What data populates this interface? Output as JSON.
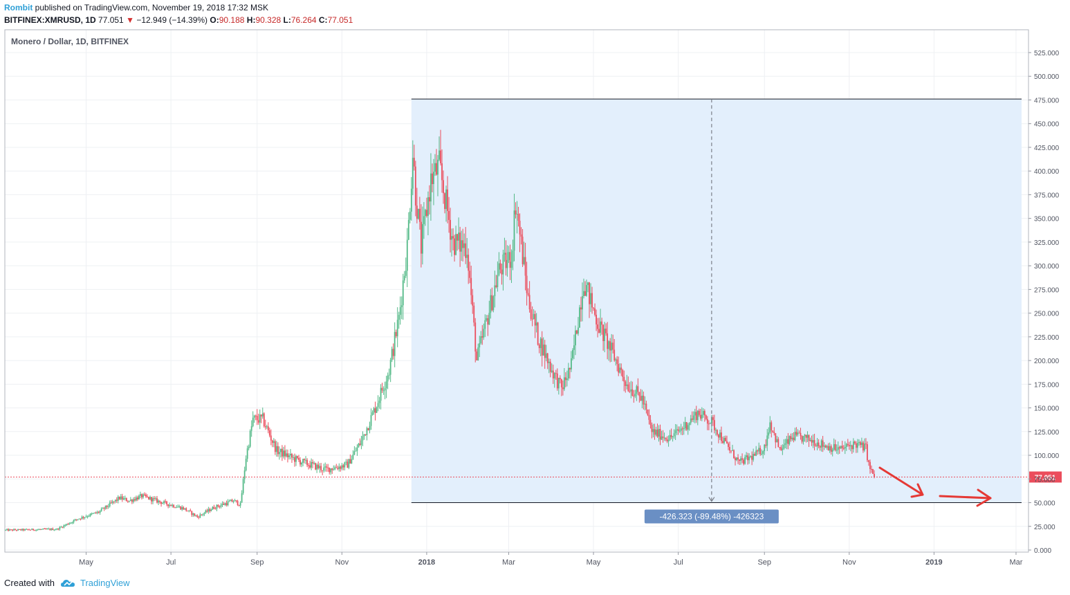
{
  "header": {
    "author": "Rombit",
    "published": "published on TradingView.com, November 19, 2018 17:32 MSK",
    "symbol": "BITFINEX:XMRUSD, 1D",
    "last": "77.051",
    "change": "−12.949 (−14.39%)",
    "o_label": "O:",
    "o": "90.188",
    "h_label": "H:",
    "h": "90.328",
    "l_label": "L:",
    "l": "76.264",
    "c_label": "C:",
    "c": "77.051"
  },
  "footer": {
    "created": "Created with",
    "brand": "TradingView"
  },
  "colors": {
    "up": "#53b987",
    "down": "#eb4d5c",
    "range_fill": "#e3effc",
    "price_line": "#eb4d5c",
    "measure_badge": "#6a8fc4",
    "arrow": "#e53935"
  },
  "chart_data": {
    "type": "candlestick",
    "title": "Monero / Dollar, 1D, BITFINEX",
    "ylim": [
      0,
      540
    ],
    "y_ticks": [
      "0.000",
      "25.000",
      "50.000",
      "75.000",
      "100.000",
      "125.000",
      "150.000",
      "175.000",
      "200.000",
      "225.000",
      "250.000",
      "275.000",
      "300.000",
      "325.000",
      "350.000",
      "375.000",
      "400.000",
      "425.000",
      "450.000",
      "475.000",
      "500.000",
      "525.000"
    ],
    "y_tick_values": [
      0,
      25,
      50,
      75,
      100,
      125,
      150,
      175,
      200,
      225,
      250,
      275,
      300,
      325,
      350,
      375,
      400,
      425,
      450,
      475,
      500,
      525
    ],
    "x_ticks": [
      {
        "label": "May",
        "date": "2017-05-01",
        "bold": false
      },
      {
        "label": "Jul",
        "date": "2017-07-01",
        "bold": false
      },
      {
        "label": "Sep",
        "date": "2017-09-01",
        "bold": false
      },
      {
        "label": "Nov",
        "date": "2017-11-01",
        "bold": false
      },
      {
        "label": "2018",
        "date": "2018-01-01",
        "bold": true
      },
      {
        "label": "Mar",
        "date": "2018-03-01",
        "bold": false
      },
      {
        "label": "May",
        "date": "2018-05-01",
        "bold": false
      },
      {
        "label": "Jul",
        "date": "2018-07-01",
        "bold": false
      },
      {
        "label": "Sep",
        "date": "2018-09-01",
        "bold": false
      },
      {
        "label": "Nov",
        "date": "2018-11-01",
        "bold": false
      },
      {
        "label": "2019",
        "date": "2019-01-01",
        "bold": true
      },
      {
        "label": "Mar",
        "date": "2019-03-01",
        "bold": false
      }
    ],
    "xlim": [
      "2017-03-04",
      "2019-03-05"
    ],
    "price_path": [
      [
        "2017-03-04",
        21
      ],
      [
        "2017-04-10",
        22
      ],
      [
        "2017-04-25",
        33
      ],
      [
        "2017-05-10",
        40
      ],
      [
        "2017-05-25",
        55
      ],
      [
        "2017-06-01",
        52
      ],
      [
        "2017-06-10",
        57
      ],
      [
        "2017-06-25",
        50
      ],
      [
        "2017-07-10",
        44
      ],
      [
        "2017-07-20",
        35
      ],
      [
        "2017-08-01",
        45
      ],
      [
        "2017-08-15",
        52
      ],
      [
        "2017-08-20",
        48
      ],
      [
        "2017-08-24",
        98
      ],
      [
        "2017-08-29",
        138
      ],
      [
        "2017-09-05",
        138
      ],
      [
        "2017-09-15",
        105
      ],
      [
        "2017-09-25",
        98
      ],
      [
        "2017-10-05",
        92
      ],
      [
        "2017-10-20",
        85
      ],
      [
        "2017-10-30",
        88
      ],
      [
        "2017-11-05",
        90
      ],
      [
        "2017-11-15",
        115
      ],
      [
        "2017-11-25",
        150
      ],
      [
        "2017-12-05",
        190
      ],
      [
        "2017-12-12",
        245
      ],
      [
        "2017-12-18",
        320
      ],
      [
        "2017-12-22",
        420
      ],
      [
        "2017-12-24",
        378
      ],
      [
        "2017-12-28",
        320
      ],
      [
        "2018-01-04",
        390
      ],
      [
        "2018-01-10",
        405
      ],
      [
        "2018-01-20",
        325
      ],
      [
        "2018-01-30",
        320
      ],
      [
        "2018-02-06",
        200
      ],
      [
        "2018-02-12",
        235
      ],
      [
        "2018-02-22",
        295
      ],
      [
        "2018-03-03",
        310
      ],
      [
        "2018-03-06",
        368
      ],
      [
        "2018-03-15",
        265
      ],
      [
        "2018-03-22",
        225
      ],
      [
        "2018-04-01",
        190
      ],
      [
        "2018-04-08",
        170
      ],
      [
        "2018-04-15",
        195
      ],
      [
        "2018-04-24",
        285
      ],
      [
        "2018-05-04",
        240
      ],
      [
        "2018-05-14",
        210
      ],
      [
        "2018-05-25",
        175
      ],
      [
        "2018-06-05",
        160
      ],
      [
        "2018-06-12",
        125
      ],
      [
        "2018-06-25",
        118
      ],
      [
        "2018-07-05",
        130
      ],
      [
        "2018-07-15",
        145
      ],
      [
        "2018-07-25",
        135
      ],
      [
        "2018-08-05",
        110
      ],
      [
        "2018-08-14",
        92
      ],
      [
        "2018-08-25",
        100
      ],
      [
        "2018-09-01",
        108
      ],
      [
        "2018-09-05",
        135
      ],
      [
        "2018-09-12",
        105
      ],
      [
        "2018-09-22",
        120
      ],
      [
        "2018-10-05",
        116
      ],
      [
        "2018-10-15",
        110
      ],
      [
        "2018-10-25",
        106
      ],
      [
        "2018-11-05",
        112
      ],
      [
        "2018-11-13",
        108
      ],
      [
        "2018-11-15",
        90
      ],
      [
        "2018-11-19",
        77
      ]
    ],
    "range_box": {
      "from": "2017-12-21",
      "to": "2019-03-01",
      "high": 476.0,
      "low": 50.0
    },
    "measure_label": "-426.323 (-89.48%) -426323",
    "last_price": 77.051,
    "last_price_label": "77.051"
  }
}
